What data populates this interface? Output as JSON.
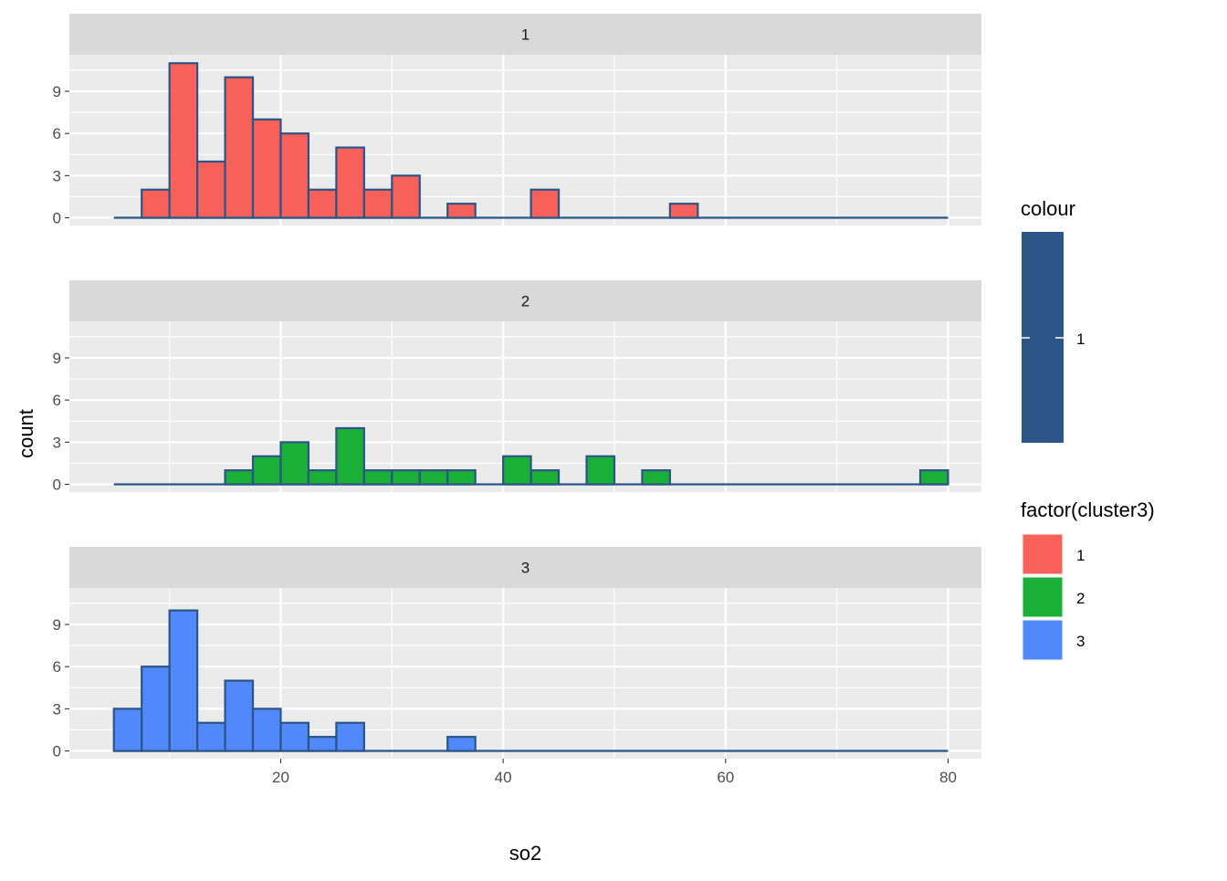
{
  "chart_data": {
    "type": "bar",
    "subtype": "faceted-histogram",
    "xlabel": "so2",
    "ylabel": "count",
    "xlim": [
      1,
      83
    ],
    "ylim": [
      -0.55,
      11.6
    ],
    "x_ticks": [
      20,
      40,
      60,
      80
    ],
    "y_ticks": [
      0,
      3,
      6,
      9
    ],
    "grid": true,
    "bin_width": 2.5,
    "bin_start": 5,
    "bin_count": 30,
    "outline_color": "#2b5587",
    "panels": [
      {
        "strip": "1",
        "series_name": "1",
        "fill": "#f8605a",
        "counts": [
          0,
          2,
          11,
          4,
          10,
          7,
          6,
          2,
          5,
          2,
          3,
          0,
          1,
          0,
          0,
          2,
          0,
          0,
          0,
          0,
          1,
          0,
          0,
          0,
          0,
          0,
          0,
          0,
          0,
          0
        ]
      },
      {
        "strip": "2",
        "series_name": "2",
        "fill": "#1aaf36",
        "counts": [
          0,
          0,
          0,
          0,
          1,
          2,
          3,
          1,
          4,
          1,
          1,
          1,
          1,
          0,
          2,
          1,
          0,
          2,
          0,
          1,
          0,
          0,
          0,
          0,
          0,
          0,
          0,
          0,
          0,
          1
        ]
      },
      {
        "strip": "3",
        "series_name": "3",
        "fill": "#5189fb",
        "counts": [
          3,
          6,
          10,
          2,
          5,
          3,
          2,
          1,
          2,
          0,
          0,
          0,
          1,
          0,
          0,
          0,
          0,
          0,
          0,
          0,
          0,
          0,
          0,
          0,
          0,
          0,
          0,
          0,
          0,
          0
        ]
      }
    ],
    "legends": [
      {
        "title": "colour",
        "type": "colour",
        "color": "#2b5587",
        "items": [
          "1"
        ]
      },
      {
        "title": "factor(cluster3)",
        "type": "fill",
        "items": [
          {
            "label": "1",
            "color": "#f8605a"
          },
          {
            "label": "2",
            "color": "#1aaf36"
          },
          {
            "label": "3",
            "color": "#5189fb"
          }
        ]
      }
    ],
    "legend_position": "right"
  }
}
